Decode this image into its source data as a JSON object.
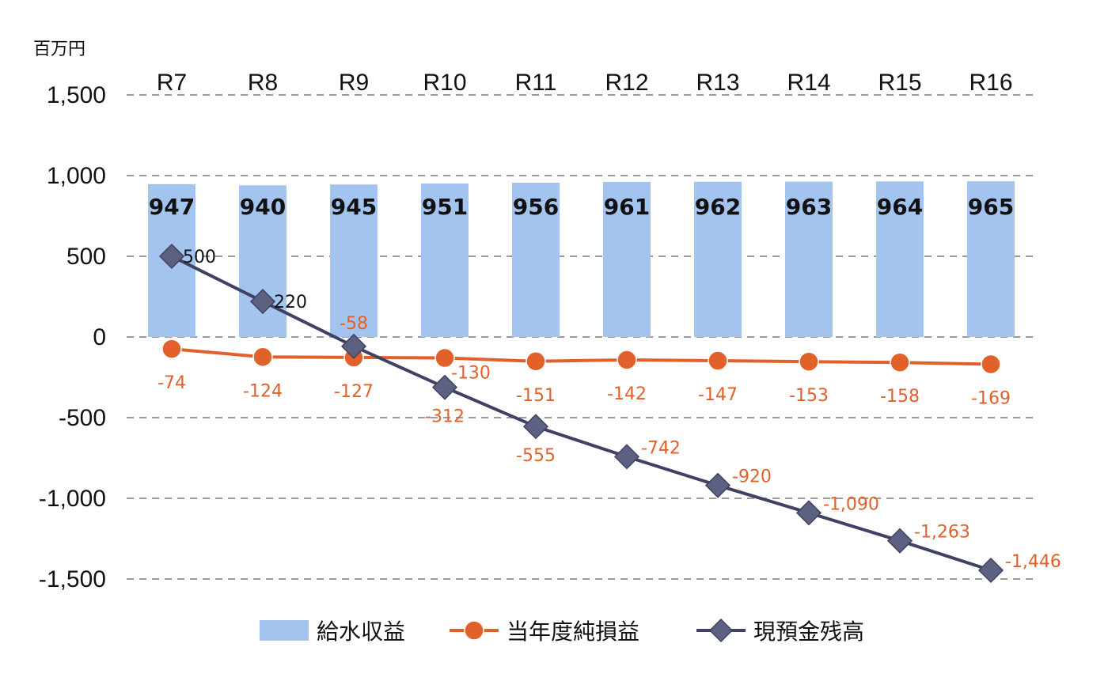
{
  "chart_data": {
    "type": "bar",
    "unit_label": "百万円",
    "categories": [
      "R7",
      "R8",
      "R9",
      "R10",
      "R11",
      "R12",
      "R13",
      "R14",
      "R15",
      "R16"
    ],
    "ylim": [
      -1500,
      1500
    ],
    "yticks": [
      1500,
      1000,
      500,
      0,
      -500,
      -1000,
      -1500
    ],
    "ytick_labels": [
      "1,500",
      "1,000",
      "500",
      "0",
      "-500",
      "-1,000",
      "-1,500"
    ],
    "grid": true,
    "legend_position": "bottom",
    "series": [
      {
        "name": "給水収益",
        "type": "bar",
        "color": "#a3c4ef",
        "values": [
          947,
          940,
          945,
          951,
          956,
          961,
          962,
          963,
          964,
          965
        ],
        "labels": [
          "947",
          "940",
          "945",
          "951",
          "956",
          "961",
          "962",
          "963",
          "964",
          "965"
        ]
      },
      {
        "name": "当年度純損益",
        "type": "line",
        "color": "#e2612a",
        "marker": "circle",
        "values": [
          -74,
          -124,
          -127,
          -130,
          -151,
          -142,
          -147,
          -153,
          -158,
          -169
        ],
        "labels": [
          "-74",
          "-124",
          "-127",
          "-130",
          "-151",
          "-142",
          "-147",
          "-153",
          "-158",
          "-169"
        ]
      },
      {
        "name": "現預金残高",
        "type": "line",
        "color": "#3f4263",
        "marker": "diamond",
        "values": [
          500,
          220,
          -58,
          -312,
          -555,
          -742,
          -920,
          -1090,
          -1263,
          -1446
        ],
        "labels": [
          "500",
          "220",
          "-58",
          "-312",
          "-555",
          "-742",
          "-920",
          "-1,090",
          "-1,263",
          "-1,446"
        ]
      }
    ]
  }
}
